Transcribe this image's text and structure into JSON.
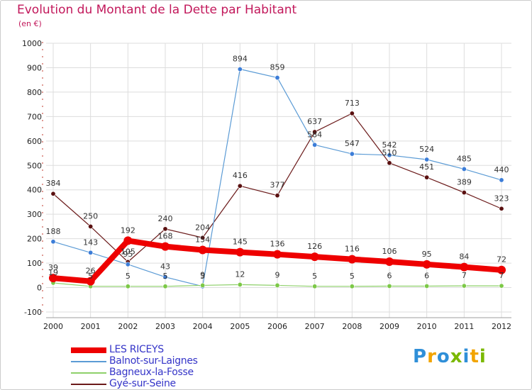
{
  "title": "Evolution du Montant de la Dette par Habitant",
  "subtitle": "(en €)",
  "logo": {
    "text": "Proxiti",
    "colors": [
      "#2f8fd8",
      "#f2a400",
      "#2f8fd8",
      "#7ab800",
      "#2f8fd8",
      "#f2a400",
      "#7ab800"
    ]
  },
  "chart_data": {
    "type": "line",
    "x": [
      2000,
      2001,
      2002,
      2003,
      2004,
      2005,
      2006,
      2007,
      2008,
      2009,
      2010,
      2011,
      2012
    ],
    "ylim": [
      -100,
      1000
    ],
    "yticks": [
      -100,
      0,
      100,
      200,
      300,
      400,
      500,
      600,
      700,
      800,
      900,
      1000
    ],
    "grid": true,
    "legend_position": "bottom-left",
    "series": [
      {
        "name": "Gyé-sur-Seine",
        "color": "#6b1a1a",
        "marker": "#5a1010",
        "width": 1.2,
        "values": [
          384,
          250,
          105,
          240,
          204,
          416,
          377,
          637,
          713,
          510,
          451,
          389,
          323
        ],
        "labels": [
          "384",
          "250",
          "105",
          "240",
          "204",
          "416",
          "377",
          "637",
          "713",
          "510",
          "451",
          "389",
          "323"
        ]
      },
      {
        "name": "Balnot-sur-Laignes",
        "color": "#5b9bd5",
        "marker": "#3c7dd8",
        "width": 1.2,
        "values": [
          188,
          143,
          95,
          43,
          5,
          894,
          859,
          584,
          547,
          542,
          524,
          485,
          440
        ],
        "labels": [
          "188",
          "143",
          "95",
          "43",
          "5",
          "894",
          "859",
          "584",
          "547",
          "542",
          "524",
          "485",
          "440"
        ]
      },
      {
        "name": "Bagneux-la-Fosse",
        "color": "#8ed06a",
        "marker": "#7cc847",
        "width": 1.2,
        "values": [
          19,
          5,
          5,
          5,
          9,
          12,
          9,
          5,
          5,
          6,
          6,
          7,
          7
        ],
        "labels": [
          "19",
          "5",
          "5",
          "5",
          "9",
          "12",
          "9",
          "5",
          "5",
          "6",
          "6",
          "7",
          "7"
        ]
      },
      {
        "name": "LES RICEYS",
        "color": "#ee0000",
        "marker": "#ee0000",
        "width": 8,
        "values": [
          39,
          26,
          192,
          168,
          154,
          145,
          136,
          126,
          116,
          106,
          95,
          84,
          72
        ],
        "labels": [
          "39",
          "26",
          "192",
          "168",
          "154",
          "145",
          "136",
          "126",
          "116",
          "106",
          "95",
          "84",
          "72"
        ]
      }
    ],
    "legend_order": [
      "LES RICEYS",
      "Balnot-sur-Laignes",
      "Bagneux-la-Fosse",
      "Gyé-sur-Seine"
    ]
  }
}
